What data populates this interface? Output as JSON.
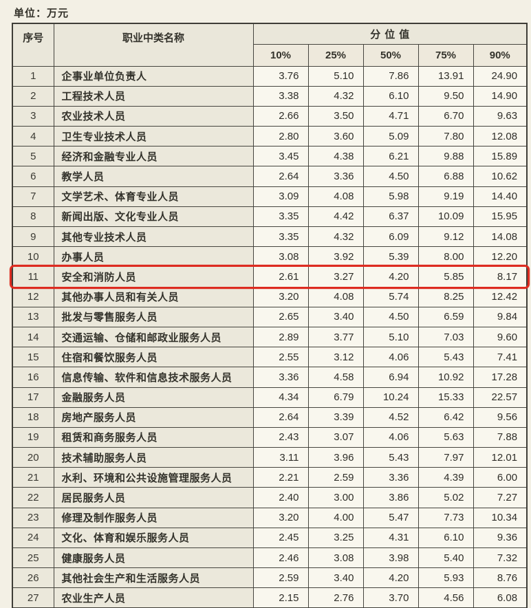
{
  "page": {
    "unit_label": "单位：万元"
  },
  "colors": {
    "page_bg": "#f3f0e5",
    "label_cell_bg": "#ebe8db",
    "value_cell_bg": "#f9f7ee",
    "border": "#45443e",
    "text": "#3a3a3a",
    "highlight_border": "#dd2b20"
  },
  "table": {
    "headers": {
      "index": "序号",
      "occupation": "职业中类名称",
      "group": "分位值"
    },
    "percentiles": [
      "10%",
      "25%",
      "50%",
      "75%",
      "90%"
    ],
    "highlighted_row_number": 11,
    "rows": [
      {
        "no": "1",
        "name": "企事业单位负责人",
        "values": [
          "3.76",
          "5.10",
          "7.86",
          "13.91",
          "24.90"
        ]
      },
      {
        "no": "2",
        "name": "工程技术人员",
        "values": [
          "3.38",
          "4.32",
          "6.10",
          "9.50",
          "14.90"
        ]
      },
      {
        "no": "3",
        "name": "农业技术人员",
        "values": [
          "2.66",
          "3.50",
          "4.71",
          "6.70",
          "9.63"
        ]
      },
      {
        "no": "4",
        "name": "卫生专业技术人员",
        "values": [
          "2.80",
          "3.60",
          "5.09",
          "7.80",
          "12.08"
        ]
      },
      {
        "no": "5",
        "name": "经济和金融专业人员",
        "values": [
          "3.45",
          "4.38",
          "6.21",
          "9.88",
          "15.89"
        ]
      },
      {
        "no": "6",
        "name": "教学人员",
        "values": [
          "2.64",
          "3.36",
          "4.50",
          "6.88",
          "10.62"
        ]
      },
      {
        "no": "7",
        "name": "文学艺术、体育专业人员",
        "values": [
          "3.09",
          "4.08",
          "5.98",
          "9.19",
          "14.40"
        ]
      },
      {
        "no": "8",
        "name": "新闻出版、文化专业人员",
        "values": [
          "3.35",
          "4.42",
          "6.37",
          "10.09",
          "15.95"
        ]
      },
      {
        "no": "9",
        "name": "其他专业技术人员",
        "values": [
          "3.35",
          "4.32",
          "6.09",
          "9.12",
          "14.08"
        ]
      },
      {
        "no": "10",
        "name": "办事人员",
        "values": [
          "3.08",
          "3.92",
          "5.39",
          "8.00",
          "12.20"
        ]
      },
      {
        "no": "11",
        "name": "安全和消防人员",
        "values": [
          "2.61",
          "3.27",
          "4.20",
          "5.85",
          "8.17"
        ]
      },
      {
        "no": "12",
        "name": "其他办事人员和有关人员",
        "values": [
          "3.20",
          "4.08",
          "5.74",
          "8.25",
          "12.42"
        ]
      },
      {
        "no": "13",
        "name": "批发与零售服务人员",
        "values": [
          "2.65",
          "3.40",
          "4.50",
          "6.59",
          "9.84"
        ]
      },
      {
        "no": "14",
        "name": "交通运输、仓储和邮政业服务人员",
        "values": [
          "2.89",
          "3.77",
          "5.10",
          "7.03",
          "9.60"
        ]
      },
      {
        "no": "15",
        "name": "住宿和餐饮服务人员",
        "values": [
          "2.55",
          "3.12",
          "4.06",
          "5.43",
          "7.41"
        ]
      },
      {
        "no": "16",
        "name": "信息传输、软件和信息技术服务人员",
        "values": [
          "3.36",
          "4.58",
          "6.94",
          "10.92",
          "17.28"
        ]
      },
      {
        "no": "17",
        "name": "金融服务人员",
        "values": [
          "4.34",
          "6.79",
          "10.24",
          "15.33",
          "22.57"
        ]
      },
      {
        "no": "18",
        "name": "房地产服务人员",
        "values": [
          "2.64",
          "3.39",
          "4.52",
          "6.42",
          "9.56"
        ]
      },
      {
        "no": "19",
        "name": "租赁和商务服务人员",
        "values": [
          "2.43",
          "3.07",
          "4.06",
          "5.63",
          "7.88"
        ]
      },
      {
        "no": "20",
        "name": "技术辅助服务人员",
        "values": [
          "3.11",
          "3.96",
          "5.43",
          "7.97",
          "12.01"
        ]
      },
      {
        "no": "21",
        "name": "水利、环境和公共设施管理服务人员",
        "values": [
          "2.21",
          "2.59",
          "3.36",
          "4.39",
          "6.00"
        ]
      },
      {
        "no": "22",
        "name": "居民服务人员",
        "values": [
          "2.40",
          "3.00",
          "3.86",
          "5.02",
          "7.27"
        ]
      },
      {
        "no": "23",
        "name": "修理及制作服务人员",
        "values": [
          "3.20",
          "4.00",
          "5.47",
          "7.73",
          "10.34"
        ]
      },
      {
        "no": "24",
        "name": "文化、体育和娱乐服务人员",
        "values": [
          "2.45",
          "3.25",
          "4.31",
          "6.10",
          "9.36"
        ]
      },
      {
        "no": "25",
        "name": "健康服务人员",
        "values": [
          "2.46",
          "3.08",
          "3.98",
          "5.40",
          "7.32"
        ]
      },
      {
        "no": "26",
        "name": "其他社会生产和生活服务人员",
        "values": [
          "2.59",
          "3.40",
          "4.20",
          "5.93",
          "8.76"
        ]
      },
      {
        "no": "27",
        "name": "农业生产人员",
        "values": [
          "2.15",
          "2.76",
          "3.70",
          "4.56",
          "6.08"
        ]
      }
    ]
  }
}
